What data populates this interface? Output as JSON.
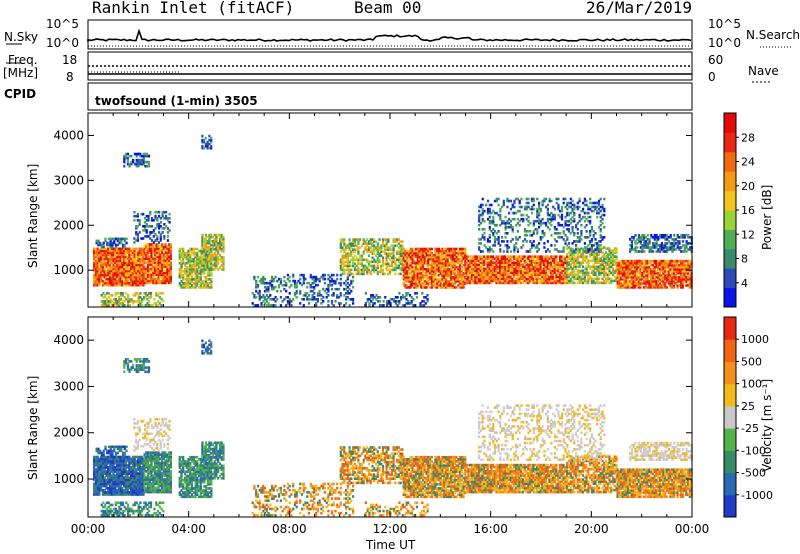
{
  "header": {
    "station": "Rankin Inlet (fitACF)",
    "beam": "Beam 00",
    "date": "26/Mar/2019"
  },
  "left_labels": {
    "nsky": "N.Sky",
    "freq": "Freq.",
    "freq_unit": "[MHz]",
    "cpid": "CPID",
    "nsky_tick_hi": "10^5",
    "nsky_tick_lo": "10^0",
    "freq_tick_hi": "18",
    "freq_tick_lo": "8"
  },
  "right_labels": {
    "nsearch": "N.Search",
    "nave": "Nave",
    "ns_tick_hi": "10^5",
    "ns_tick_lo": "10^0",
    "nave_tick_hi": "60",
    "nave_tick_lo": "0"
  },
  "cpid_text": "twofsound (1-min) 3505",
  "chart_data": [
    {
      "type": "heatmap",
      "name": "power",
      "ylabel": "Slant Range [km]",
      "xlabel": "",
      "ylim": [
        180,
        4500
      ],
      "yticks": [
        "1000",
        "2000",
        "3000",
        "4000"
      ],
      "colorbar_label": "Power [dB]",
      "colorbar_ticks": [
        "4",
        "8",
        "12",
        "16",
        "20",
        "24",
        "28"
      ],
      "colorbar_colors": [
        "#0a14e6",
        "#2a4ab6",
        "#3a8a6a",
        "#4fae55",
        "#9ad23a",
        "#f2c41c",
        "#f59a14",
        "#f06a12",
        "#e82812",
        "#e40a0a"
      ]
    },
    {
      "type": "heatmap",
      "name": "velocity",
      "ylabel": "Slant Range [km]",
      "xlabel": "Time UT",
      "ylim": [
        180,
        4500
      ],
      "yticks": [
        "1000",
        "2000",
        "3000",
        "4000"
      ],
      "xticks": [
        "00:00",
        "04:00",
        "08:00",
        "12:00",
        "16:00",
        "20:00",
        "00:00"
      ],
      "colorbar_label": "Velocity [m s⁻¹]",
      "colorbar_ticks": [
        "1000",
        "500",
        "100",
        "25",
        "-25",
        "-100",
        "-500",
        "-1000"
      ],
      "colorbar_colors": [
        "#1e3cc8",
        "#2a6ab4",
        "#3a8a6a",
        "#56b24a",
        "#c8c8c8",
        "#f2b81c",
        "#f5901a",
        "#f06414",
        "#e82812"
      ]
    }
  ]
}
